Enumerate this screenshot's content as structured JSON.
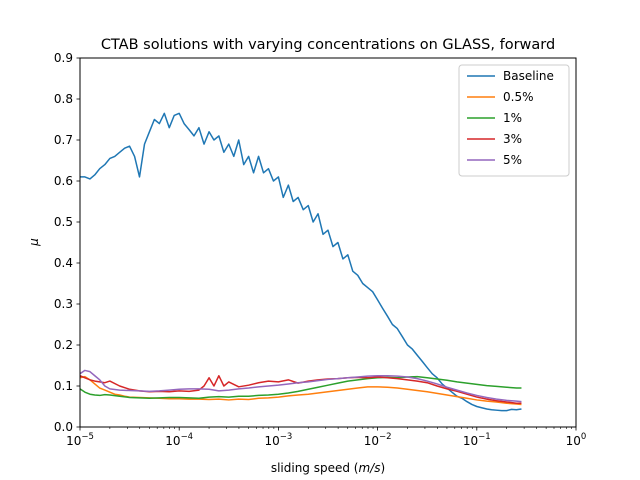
{
  "chart_data": {
    "type": "line",
    "title": "CTAB solutions with varying concentrations on GLASS, forward",
    "xlabel_prefix": "sliding speed (",
    "xlabel_unit": "m/s",
    "xlabel_suffix": ")",
    "ylabel": "μ",
    "x_scale": "log",
    "xlim": [
      1e-05,
      1
    ],
    "ylim": [
      0,
      0.9
    ],
    "x_ticks": [
      1e-05,
      0.0001,
      0.001,
      0.01,
      0.1,
      1
    ],
    "x_tick_labels": [
      {
        "base": "10",
        "exp": "−5"
      },
      {
        "base": "10",
        "exp": "−4"
      },
      {
        "base": "10",
        "exp": "−3"
      },
      {
        "base": "10",
        "exp": "−2"
      },
      {
        "base": "10",
        "exp": "−1"
      },
      {
        "base": "10",
        "exp": "0"
      }
    ],
    "y_ticks": [
      0,
      0.1,
      0.2,
      0.3,
      0.4,
      0.5,
      0.6,
      0.7,
      0.8,
      0.9
    ],
    "y_tick_labels": [
      "0.0",
      "0.1",
      "0.2",
      "0.3",
      "0.4",
      "0.5",
      "0.6",
      "0.7",
      "0.8",
      "0.9"
    ],
    "grid": false,
    "legend_position": "top-right",
    "series": [
      {
        "name": "Baseline",
        "color": "#1f77b4",
        "x": [
          1e-05,
          1.12e-05,
          1.26e-05,
          1.41e-05,
          1.58e-05,
          1.78e-05,
          2e-05,
          2.24e-05,
          2.51e-05,
          2.82e-05,
          3.16e-05,
          3.55e-05,
          3.98e-05,
          4.47e-05,
          5.01e-05,
          5.62e-05,
          6.31e-05,
          7.08e-05,
          7.94e-05,
          8.91e-05,
          0.0001,
          0.000112,
          0.000126,
          0.000141,
          0.000158,
          0.000178,
          0.0002,
          0.000224,
          0.000251,
          0.000282,
          0.000316,
          0.000355,
          0.000398,
          0.000447,
          0.000501,
          0.000562,
          0.000631,
          0.000708,
          0.000794,
          0.000891,
          0.001,
          0.00112,
          0.00126,
          0.00141,
          0.00158,
          0.00178,
          0.002,
          0.00224,
          0.00251,
          0.00282,
          0.00316,
          0.00355,
          0.00398,
          0.00447,
          0.00501,
          0.00562,
          0.00631,
          0.00708,
          0.00794,
          0.00891,
          0.01,
          0.0112,
          0.0126,
          0.0141,
          0.0158,
          0.0178,
          0.02,
          0.0224,
          0.0251,
          0.0282,
          0.0316,
          0.0355,
          0.0398,
          0.0447,
          0.0501,
          0.0562,
          0.0631,
          0.0708,
          0.0794,
          0.0891,
          0.1,
          0.112,
          0.126,
          0.141,
          0.158,
          0.178,
          0.2,
          0.224,
          0.251,
          0.282
        ],
        "y": [
          0.61,
          0.61,
          0.605,
          0.615,
          0.63,
          0.64,
          0.655,
          0.66,
          0.67,
          0.68,
          0.685,
          0.66,
          0.61,
          0.69,
          0.72,
          0.75,
          0.74,
          0.765,
          0.73,
          0.76,
          0.765,
          0.74,
          0.725,
          0.71,
          0.73,
          0.69,
          0.72,
          0.7,
          0.71,
          0.67,
          0.69,
          0.66,
          0.7,
          0.64,
          0.66,
          0.62,
          0.66,
          0.62,
          0.63,
          0.6,
          0.61,
          0.56,
          0.59,
          0.55,
          0.56,
          0.53,
          0.54,
          0.5,
          0.52,
          0.47,
          0.48,
          0.44,
          0.45,
          0.41,
          0.42,
          0.38,
          0.37,
          0.35,
          0.34,
          0.33,
          0.31,
          0.29,
          0.27,
          0.25,
          0.24,
          0.22,
          0.2,
          0.19,
          0.175,
          0.16,
          0.145,
          0.13,
          0.12,
          0.105,
          0.095,
          0.085,
          0.075,
          0.07,
          0.062,
          0.055,
          0.05,
          0.047,
          0.044,
          0.042,
          0.041,
          0.04,
          0.04,
          0.043,
          0.042,
          0.044
        ]
      },
      {
        "name": "0.5%",
        "color": "#ff7f0e",
        "x": [
          1e-05,
          1.12e-05,
          1.26e-05,
          1.41e-05,
          1.58e-05,
          1.78e-05,
          2e-05,
          2.24e-05,
          2.51e-05,
          2.82e-05,
          3.16e-05,
          3.98e-05,
          5.01e-05,
          6.31e-05,
          7.94e-05,
          0.0001,
          0.000126,
          0.000158,
          0.0002,
          0.000251,
          0.000316,
          0.000398,
          0.000501,
          0.000631,
          0.000794,
          0.001,
          0.00126,
          0.00158,
          0.002,
          0.00251,
          0.00316,
          0.00398,
          0.00501,
          0.00631,
          0.00794,
          0.01,
          0.0126,
          0.0158,
          0.02,
          0.0251,
          0.0316,
          0.0398,
          0.0501,
          0.0631,
          0.0794,
          0.1,
          0.126,
          0.158,
          0.2,
          0.251,
          0.282
        ],
        "y": [
          0.12,
          0.123,
          0.115,
          0.105,
          0.095,
          0.09,
          0.085,
          0.08,
          0.078,
          0.075,
          0.073,
          0.072,
          0.071,
          0.07,
          0.069,
          0.069,
          0.068,
          0.068,
          0.067,
          0.068,
          0.066,
          0.068,
          0.067,
          0.07,
          0.071,
          0.073,
          0.076,
          0.078,
          0.08,
          0.083,
          0.086,
          0.089,
          0.092,
          0.095,
          0.098,
          0.098,
          0.097,
          0.095,
          0.092,
          0.089,
          0.086,
          0.082,
          0.078,
          0.074,
          0.07,
          0.066,
          0.063,
          0.061,
          0.058,
          0.056,
          0.055
        ]
      },
      {
        "name": "1%",
        "color": "#2ca02c",
        "x": [
          1e-05,
          1.12e-05,
          1.26e-05,
          1.41e-05,
          1.58e-05,
          1.78e-05,
          2e-05,
          2.51e-05,
          3.16e-05,
          3.98e-05,
          5.01e-05,
          6.31e-05,
          7.94e-05,
          0.0001,
          0.000126,
          0.000158,
          0.0002,
          0.000251,
          0.000316,
          0.000398,
          0.000501,
          0.000631,
          0.000794,
          0.001,
          0.00126,
          0.00158,
          0.002,
          0.00251,
          0.00316,
          0.00398,
          0.00501,
          0.00631,
          0.00794,
          0.01,
          0.0126,
          0.0158,
          0.02,
          0.0251,
          0.0316,
          0.0398,
          0.0501,
          0.0631,
          0.0794,
          0.1,
          0.126,
          0.158,
          0.2,
          0.251,
          0.282
        ],
        "y": [
          0.093,
          0.085,
          0.08,
          0.078,
          0.077,
          0.079,
          0.078,
          0.075,
          0.072,
          0.071,
          0.07,
          0.071,
          0.072,
          0.072,
          0.071,
          0.07,
          0.073,
          0.074,
          0.073,
          0.075,
          0.075,
          0.077,
          0.078,
          0.08,
          0.083,
          0.087,
          0.092,
          0.097,
          0.102,
          0.107,
          0.112,
          0.115,
          0.118,
          0.12,
          0.121,
          0.12,
          0.122,
          0.123,
          0.12,
          0.117,
          0.114,
          0.11,
          0.107,
          0.104,
          0.101,
          0.099,
          0.097,
          0.095,
          0.095
        ]
      },
      {
        "name": "3%",
        "color": "#d62728",
        "x": [
          1e-05,
          1.12e-05,
          1.26e-05,
          1.41e-05,
          1.58e-05,
          1.78e-05,
          2e-05,
          2.51e-05,
          3.16e-05,
          3.98e-05,
          5.01e-05,
          6.31e-05,
          7.94e-05,
          0.0001,
          0.000126,
          0.000158,
          0.000178,
          0.0002,
          0.000224,
          0.000251,
          0.000282,
          0.000316,
          0.000398,
          0.000501,
          0.000631,
          0.000794,
          0.001,
          0.00126,
          0.00158,
          0.002,
          0.00251,
          0.00316,
          0.00398,
          0.00501,
          0.00631,
          0.00794,
          0.01,
          0.0126,
          0.0158,
          0.02,
          0.0251,
          0.0316,
          0.0398,
          0.0501,
          0.0631,
          0.0794,
          0.1,
          0.126,
          0.158,
          0.2,
          0.251,
          0.282
        ],
        "y": [
          0.125,
          0.12,
          0.115,
          0.112,
          0.11,
          0.108,
          0.112,
          0.1,
          0.092,
          0.088,
          0.086,
          0.087,
          0.086,
          0.088,
          0.087,
          0.09,
          0.1,
          0.12,
          0.1,
          0.125,
          0.1,
          0.11,
          0.098,
          0.102,
          0.108,
          0.112,
          0.11,
          0.115,
          0.107,
          0.112,
          0.115,
          0.117,
          0.118,
          0.12,
          0.121,
          0.12,
          0.122,
          0.12,
          0.118,
          0.115,
          0.112,
          0.108,
          0.1,
          0.093,
          0.087,
          0.08,
          0.073,
          0.068,
          0.064,
          0.061,
          0.058,
          0.058
        ]
      },
      {
        "name": "5%",
        "color": "#9467bd",
        "x": [
          1e-05,
          1.12e-05,
          1.26e-05,
          1.41e-05,
          1.58e-05,
          1.78e-05,
          2e-05,
          2.51e-05,
          3.16e-05,
          3.98e-05,
          5.01e-05,
          6.31e-05,
          7.94e-05,
          0.0001,
          0.000126,
          0.000158,
          0.0002,
          0.000251,
          0.000316,
          0.000398,
          0.000501,
          0.000631,
          0.000794,
          0.001,
          0.00126,
          0.00158,
          0.002,
          0.00251,
          0.00316,
          0.00398,
          0.00501,
          0.00631,
          0.00794,
          0.01,
          0.0126,
          0.0158,
          0.02,
          0.0251,
          0.0316,
          0.0398,
          0.0501,
          0.0631,
          0.0794,
          0.1,
          0.126,
          0.158,
          0.2,
          0.251,
          0.282
        ],
        "y": [
          0.13,
          0.138,
          0.135,
          0.125,
          0.115,
          0.1,
          0.093,
          0.09,
          0.089,
          0.088,
          0.087,
          0.088,
          0.09,
          0.092,
          0.093,
          0.093,
          0.092,
          0.088,
          0.09,
          0.093,
          0.095,
          0.098,
          0.1,
          0.102,
          0.105,
          0.108,
          0.11,
          0.113,
          0.116,
          0.118,
          0.12,
          0.122,
          0.124,
          0.125,
          0.125,
          0.124,
          0.122,
          0.118,
          0.112,
          0.105,
          0.097,
          0.09,
          0.083,
          0.077,
          0.072,
          0.068,
          0.065,
          0.063,
          0.062
        ]
      }
    ]
  }
}
